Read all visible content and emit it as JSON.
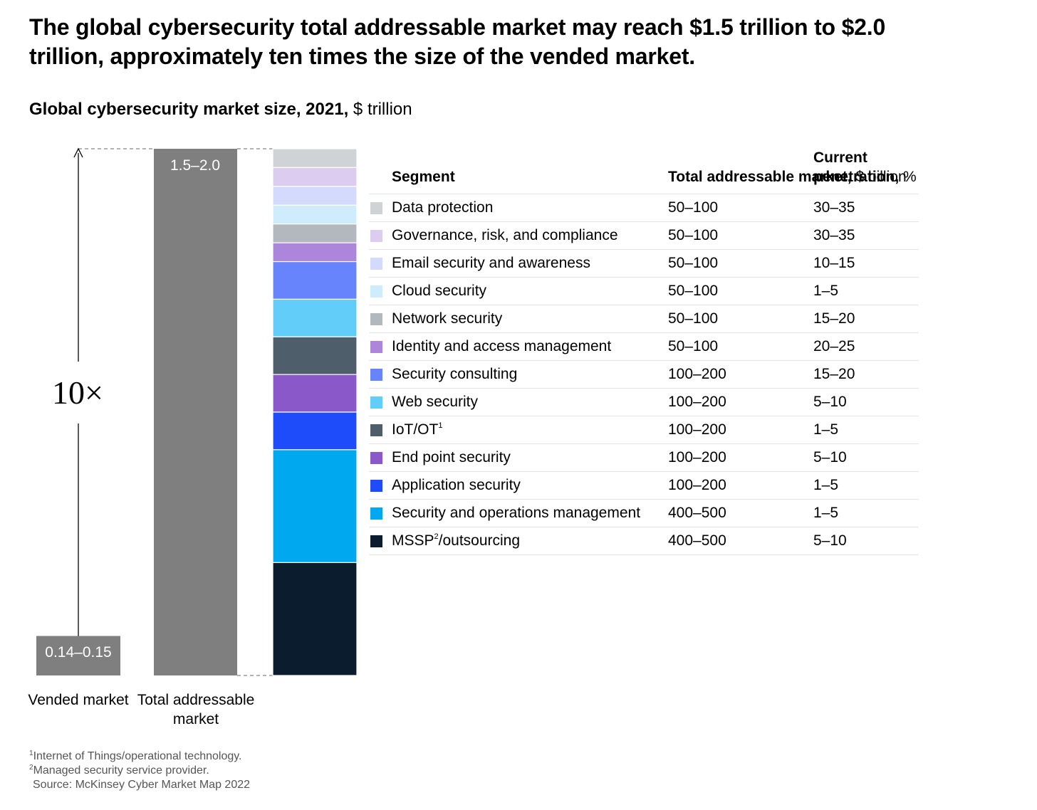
{
  "headline": "The global cybersecurity total addressable market may reach $1.5 trillion to $2.0 trillion, approximately ten times the size of the vended market.",
  "subtitle": {
    "bold": "Global cybersecurity market size, 2021,",
    "unit": "$ trillion"
  },
  "multiplier_label": "10×",
  "table_headers": {
    "segment": "Segment",
    "tam_bold": "Total addressable market,",
    "tam_unit": "$ billion",
    "pen_bold": "Current penetration,",
    "pen_unit": "%"
  },
  "chart_data": {
    "type": "bar",
    "categories": [
      "Vended market",
      "Total addressable market"
    ],
    "values_label": [
      "0.14–0.15",
      "1.5–2.0"
    ],
    "values": [
      [
        0.14,
        0.15
      ],
      [
        1.5,
        2.0
      ]
    ],
    "unit": "$ trillion",
    "bar_color": "#7f7f7f",
    "stacked_breakdown": {
      "type": "stacked-bar",
      "unit": "$ billion",
      "segments": [
        {
          "name": "Data protection",
          "tam": "50–100",
          "penetration": "30–35",
          "color": "#d0d3d6"
        },
        {
          "name": "Governance, risk, and compliance",
          "tam": "50–100",
          "penetration": "30–35",
          "color": "#dccdf0"
        },
        {
          "name": "Email security and awareness",
          "tam": "50–100",
          "penetration": "10–15",
          "color": "#d3dafc"
        },
        {
          "name": "Cloud security",
          "tam": "50–100",
          "penetration": "1–5",
          "color": "#cfecfc"
        },
        {
          "name": "Network security",
          "tam": "50–100",
          "penetration": "15–20",
          "color": "#b2b8bd"
        },
        {
          "name": "Identity and access management",
          "tam": "50–100",
          "penetration": "20–25",
          "color": "#ab86db"
        },
        {
          "name": "Security consulting",
          "tam": "100–200",
          "penetration": "15–20",
          "color": "#6784fd"
        },
        {
          "name": "Web security",
          "tam": "100–200",
          "penetration": "5–10",
          "color": "#63cdfa"
        },
        {
          "name": "IoT/OT",
          "sup": "1",
          "tam": "100–200",
          "penetration": "1–5",
          "color": "#4e5f6b"
        },
        {
          "name": "End point security",
          "tam": "100–200",
          "penetration": "5–10",
          "color": "#8b58c9"
        },
        {
          "name": "Application security",
          "tam": "100–200",
          "penetration": "1–5",
          "color": "#1f4cfb"
        },
        {
          "name": "Security and operations management",
          "tam": "400–500",
          "penetration": "1–5",
          "color": "#00a9ef"
        },
        {
          "name": "MSSP",
          "sup": "2",
          "name_suffix": "/outsourcing",
          "tam": "400–500",
          "penetration": "5–10",
          "color": "#0a1c2d"
        }
      ]
    }
  },
  "footnotes": [
    {
      "sup": "1",
      "text": "Internet of Things/operational technology."
    },
    {
      "sup": "2",
      "text": "Managed security service provider."
    }
  ],
  "source": "Source: McKinsey Cyber Market Map 2022"
}
